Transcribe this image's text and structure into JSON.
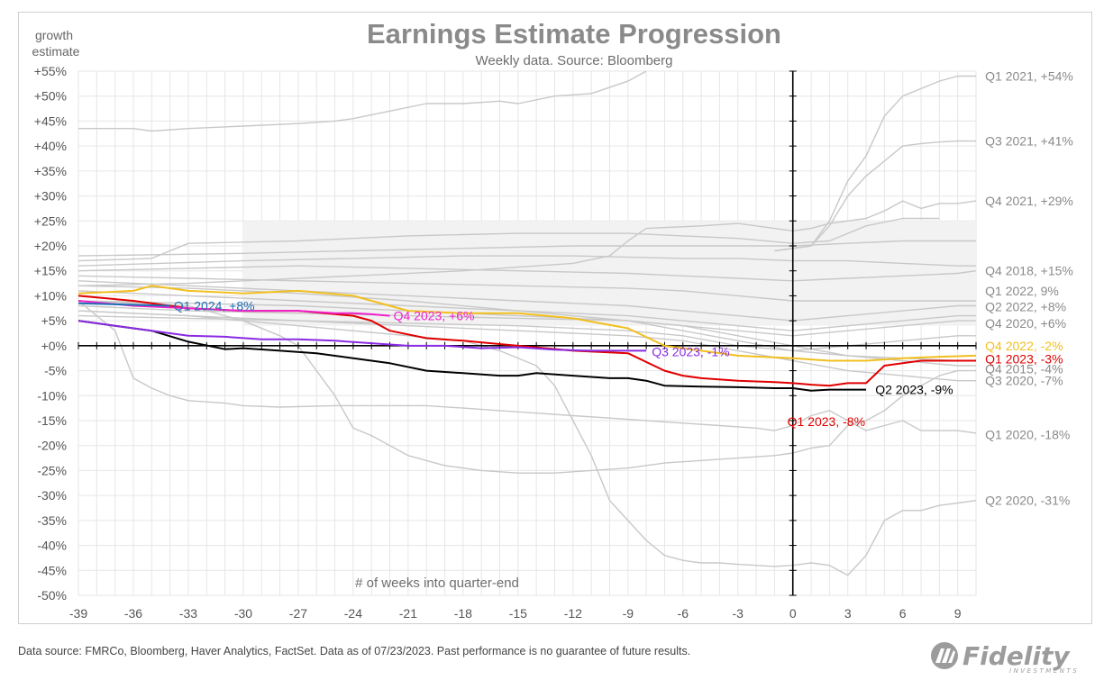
{
  "chart_data": {
    "type": "line",
    "title": "Earnings Estimate Progression",
    "subtitle": "Weekly data.  Source: Bloomberg",
    "ylabel_line1": "growth",
    "ylabel_line2": "estimate",
    "xlabel": "# of weeks into quarter-end",
    "xlim": [
      -39,
      10
    ],
    "ylim": [
      -50,
      55
    ],
    "x_ticks": [
      -39,
      -36,
      -33,
      -30,
      -27,
      -24,
      -21,
      -18,
      -15,
      -12,
      -9,
      -6,
      -3,
      0,
      3,
      6,
      9
    ],
    "y_ticks": [
      {
        "value": 55,
        "label": "+55%"
      },
      {
        "value": 50,
        "label": "+50%"
      },
      {
        "value": 45,
        "label": "+45%"
      },
      {
        "value": 40,
        "label": "+40%"
      },
      {
        "value": 35,
        "label": "+35%"
      },
      {
        "value": 30,
        "label": "+30%"
      },
      {
        "value": 25,
        "label": "+25%"
      },
      {
        "value": 20,
        "label": "+20%"
      },
      {
        "value": 15,
        "label": "+15%"
      },
      {
        "value": 10,
        "label": "+10%"
      },
      {
        "value": 5,
        "label": "+5%"
      },
      {
        "value": 0,
        "label": "+0%"
      },
      {
        "value": -5,
        "label": "-5%"
      },
      {
        "value": -10,
        "label": "-10%"
      },
      {
        "value": -15,
        "label": "-15%"
      },
      {
        "value": -20,
        "label": "-20%"
      },
      {
        "value": -25,
        "label": "-25%"
      },
      {
        "value": -30,
        "label": "-30%"
      },
      {
        "value": -35,
        "label": "-35%"
      },
      {
        "value": -40,
        "label": "-40%"
      },
      {
        "value": -45,
        "label": "-45%"
      },
      {
        "value": -50,
        "label": "-50%"
      }
    ],
    "grid": true,
    "colors": {
      "grid": "#e6e6e6",
      "history": "#c8c8c8",
      "band": "#f2f2f2",
      "q1_2024": "#1f6fb5",
      "q4_2023": "#ee22cc",
      "q3_2023": "#8a2be2",
      "q2_2023": "#000000",
      "q1_2023": "#e00000",
      "q4_2022": "#f2bf1f"
    },
    "highlighted_series": [
      {
        "key": "q4_2022",
        "color": "#f2bf1f",
        "x": [
          -39,
          -36,
          -35,
          -33,
          -30,
          -27,
          -24,
          -21,
          -18,
          -15,
          -12,
          -9,
          -7,
          -5,
          -3,
          0,
          2,
          4,
          6,
          8,
          10
        ],
        "y": [
          10.5,
          11,
          12,
          11,
          10.5,
          11,
          10,
          7,
          6.5,
          6.5,
          5.5,
          3.5,
          0,
          -1,
          -2,
          -2.5,
          -3,
          -3,
          -2.5,
          -2.2,
          -2
        ]
      },
      {
        "key": "q1_2023",
        "color": "#e00000",
        "x": [
          -39,
          -36,
          -33,
          -30,
          -27,
          -24,
          -23,
          -22,
          -20,
          -18,
          -15,
          -12,
          -9,
          -7,
          -6,
          -5,
          -3,
          -1,
          0,
          1,
          2,
          3,
          4,
          5,
          7,
          9,
          10
        ],
        "y": [
          10,
          9,
          7.5,
          7,
          7,
          6,
          5,
          3,
          1.5,
          1,
          0,
          -1,
          -1.5,
          -5,
          -6,
          -6.5,
          -7,
          -7.3,
          -7.5,
          -7.8,
          -8,
          -7.5,
          -7.5,
          -4,
          -3,
          -3,
          -3
        ]
      },
      {
        "key": "q2_2023",
        "color": "#000000",
        "x": [
          -39,
          -37,
          -35,
          -33,
          -31,
          -30,
          -28,
          -26,
          -24,
          -22,
          -20,
          -18,
          -16,
          -15,
          -14,
          -12,
          -10,
          -9,
          -8,
          -7,
          -5,
          -3,
          -1,
          0,
          1,
          2,
          4
        ],
        "y": [
          5,
          4,
          3,
          0.8,
          -0.7,
          -0.5,
          -1,
          -1.5,
          -2.5,
          -3.5,
          -5,
          -5.5,
          -6,
          -6,
          -5.5,
          -6,
          -6.5,
          -6.5,
          -7,
          -8,
          -8.2,
          -8.3,
          -8.5,
          -8.5,
          -9,
          -8.8,
          -8.8
        ]
      },
      {
        "key": "q3_2023",
        "color": "#8a2be2",
        "x": [
          -39,
          -37,
          -35,
          -33,
          -31,
          -29,
          -27,
          -25,
          -23,
          -21,
          -19,
          -17,
          -15,
          -13,
          -11,
          -9,
          -8
        ],
        "y": [
          5,
          4,
          3,
          2,
          1.8,
          1.3,
          1.3,
          1,
          0.5,
          0,
          0,
          -0.5,
          -0.3,
          -0.8,
          -1,
          -1,
          -1
        ]
      },
      {
        "key": "q4_2023",
        "color": "#ee22cc",
        "x": [
          -39,
          -36,
          -33,
          -30,
          -27,
          -25,
          -24,
          -23,
          -22
        ],
        "y": [
          9,
          8,
          7.5,
          7,
          7,
          6.5,
          6.5,
          6.3,
          6
        ]
      },
      {
        "key": "q1_2024",
        "color": "#1f6fb5",
        "x": [
          -39,
          -37,
          -35,
          -34
        ],
        "y": [
          8.5,
          8.3,
          8.1,
          8
        ]
      }
    ],
    "history_series": [
      {
        "x": [
          -39,
          -36,
          -35,
          -33,
          -30,
          -27,
          -25,
          -24,
          -22,
          -20,
          -18,
          -16,
          -15,
          -13,
          -11,
          -9,
          -8
        ],
        "y": [
          43.5,
          43.5,
          43,
          43.5,
          44,
          44.5,
          45,
          45.5,
          47,
          48.5,
          48.5,
          49,
          48.5,
          50,
          50.5,
          53,
          56
        ]
      },
      {
        "x": [
          -1,
          0,
          1,
          2,
          3,
          4,
          5,
          6,
          7,
          8,
          9,
          10
        ],
        "y": [
          19,
          19.5,
          20,
          25,
          33,
          38,
          46,
          50,
          51.5,
          53,
          54,
          54
        ]
      },
      {
        "x": [
          -1,
          0,
          1,
          2,
          3,
          4,
          5,
          6,
          7,
          8,
          9,
          10
        ],
        "y": [
          19,
          19.5,
          20,
          24,
          30,
          34,
          37,
          40,
          40.5,
          40.8,
          41,
          41
        ]
      },
      {
        "x": [
          -39,
          -33,
          -24,
          -18,
          -12,
          -10,
          -9,
          -8,
          -5,
          -3,
          -1,
          0,
          1,
          2,
          3,
          4,
          5,
          6,
          7,
          8,
          9,
          10
        ],
        "y": [
          12,
          12.5,
          14,
          15,
          16.5,
          18,
          21,
          23.5,
          24,
          24.5,
          23.5,
          23,
          23.5,
          24.5,
          25,
          25.5,
          27,
          29,
          27.5,
          28.5,
          28.5,
          29
        ]
      },
      {
        "x": [
          -39,
          -35,
          -33,
          -27,
          -21,
          -15,
          -9,
          -6,
          -3,
          0,
          2,
          4,
          6,
          8
        ],
        "y": [
          17,
          17.5,
          20.5,
          21,
          22,
          22.5,
          22.5,
          22,
          21.5,
          20.5,
          21,
          24,
          25.5,
          25.5
        ]
      },
      {
        "x": [
          -39,
          -33,
          -27,
          -21,
          -15,
          -9,
          -6,
          -3,
          0,
          3,
          6,
          9,
          10
        ],
        "y": [
          15,
          15.5,
          16,
          15.5,
          15,
          14.5,
          14,
          13.5,
          13,
          13.5,
          14,
          14.5,
          15
        ]
      },
      {
        "x": [
          -39,
          -33,
          -27,
          -21,
          -15,
          -9,
          -6,
          -3,
          0,
          3,
          6,
          9,
          10
        ],
        "y": [
          14,
          13.5,
          13,
          12.5,
          12,
          11.5,
          11,
          10,
          9,
          9,
          9,
          9,
          9
        ]
      },
      {
        "x": [
          -39,
          -33,
          -27,
          -21,
          -15,
          -9,
          -6,
          -3,
          0,
          3,
          6,
          9,
          10
        ],
        "y": [
          13,
          12,
          11,
          10,
          9,
          8,
          7,
          6,
          5,
          6,
          7,
          8,
          8
        ]
      },
      {
        "x": [
          -39,
          -33,
          -27,
          -21,
          -15,
          -9,
          -6,
          -3,
          0,
          3,
          6,
          9,
          10
        ],
        "y": [
          11,
          10,
          9,
          8,
          7,
          6,
          5,
          4,
          3,
          4,
          5,
          6,
          6
        ]
      },
      {
        "x": [
          -39,
          -33,
          -27,
          -21,
          -15,
          -9,
          -6,
          -3,
          0,
          3,
          6,
          9,
          10
        ],
        "y": [
          12,
          11.5,
          10.5,
          9,
          7,
          5,
          3,
          1,
          -1,
          -2,
          -2.5,
          -3,
          -3
        ]
      },
      {
        "x": [
          -39,
          -33,
          -27,
          -21,
          -15,
          -9,
          -6,
          -3,
          0,
          3,
          6,
          9,
          10
        ],
        "y": [
          9,
          8.5,
          8,
          7,
          6,
          5,
          4,
          3,
          2,
          3,
          4,
          5,
          5
        ]
      },
      {
        "x": [
          -39,
          -33,
          -27,
          -21,
          -15,
          -9,
          -6,
          -3,
          0,
          3,
          6,
          9,
          10
        ],
        "y": [
          8,
          7,
          6.5,
          6,
          5.5,
          5,
          4,
          2,
          0,
          -2,
          -3,
          -4,
          -4
        ]
      },
      {
        "x": [
          -39,
          -33,
          -27,
          -21,
          -15,
          -9,
          -6,
          -3,
          0,
          3,
          6,
          9,
          10
        ],
        "y": [
          7,
          6,
          5,
          4,
          3,
          2,
          1,
          -1,
          -3,
          -5,
          -6,
          -7,
          -7
        ]
      },
      {
        "x": [
          -39,
          -33,
          -27,
          -21,
          -15,
          -9,
          -6,
          -3,
          0,
          3,
          6,
          9,
          10
        ],
        "y": [
          6,
          5.5,
          5,
          4.5,
          4,
          3,
          2,
          0,
          -1,
          0,
          1,
          2,
          2
        ]
      },
      {
        "x": [
          -39,
          -37,
          -36,
          -35,
          -34,
          -33,
          -31,
          -30,
          -28,
          -25,
          -22,
          -20,
          -18,
          -16,
          -14,
          -12,
          -10,
          -8,
          -6,
          -4,
          -2,
          -1,
          0,
          1,
          2,
          3,
          4,
          5,
          6,
          7,
          8,
          9,
          10
        ],
        "y": [
          9,
          3,
          -6.5,
          -8.5,
          -10,
          -11,
          -11.5,
          -12,
          -12.3,
          -12,
          -12,
          -12,
          -12.5,
          -13,
          -13.5,
          -14,
          -14.5,
          -15,
          -15.5,
          -16,
          -16.5,
          -17,
          -16,
          -14,
          -13,
          -15,
          -17,
          -16,
          -15,
          -17,
          -17,
          -17,
          -17.5
        ]
      },
      {
        "x": [
          -39,
          -33,
          -30,
          -28,
          -27,
          -26,
          -25,
          -24,
          -23,
          -22,
          -21,
          -19,
          -17,
          -15,
          -13,
          -11,
          -9,
          -7,
          -5,
          -3,
          -1,
          0,
          1,
          2,
          3,
          4,
          5,
          6,
          7,
          8,
          9,
          10
        ],
        "y": [
          9,
          8,
          5,
          2,
          0,
          -5,
          -10,
          -16.5,
          -18,
          -20,
          -22,
          -24,
          -25,
          -25.5,
          -25.5,
          -25,
          -24.5,
          -23.5,
          -23,
          -22.5,
          -22,
          -21.5,
          -20.5,
          -20,
          -16,
          -15,
          -13,
          -10,
          -8,
          -6,
          -5,
          -5
        ]
      },
      {
        "x": [
          -39,
          -33,
          -27,
          -21,
          -18,
          -16,
          -14,
          -13,
          -12,
          -11,
          -10,
          -9,
          -8,
          -7,
          -6,
          -5,
          -4,
          -3,
          -2,
          -1,
          0,
          1,
          2,
          3,
          4,
          5,
          6,
          7,
          8,
          9,
          10
        ],
        "y": [
          7,
          6,
          4,
          2,
          1,
          -1,
          -4,
          -8,
          -15,
          -22,
          -31,
          -35,
          -39,
          -42,
          -43,
          -43.5,
          -43.5,
          -43.8,
          -44,
          -44.2,
          -44,
          -43.5,
          -44,
          -46,
          -42,
          -35,
          -33,
          -33,
          -32,
          -31.5,
          -31
        ]
      },
      {
        "x": [
          -39,
          -30,
          -24,
          -18,
          -12,
          -6,
          -3,
          0,
          3,
          6,
          9,
          10
        ],
        "y": [
          16,
          17,
          17.5,
          18,
          18,
          17.5,
          17.5,
          17,
          17,
          16.5,
          16,
          16
        ]
      },
      {
        "x": [
          -39,
          -30,
          -24,
          -18,
          -12,
          -6,
          -3,
          0,
          3,
          6,
          9,
          10
        ],
        "y": [
          18,
          18.5,
          19,
          19.5,
          20,
          20,
          20,
          20,
          20.5,
          21,
          21,
          21
        ]
      }
    ],
    "band": {
      "x_from": -30,
      "x_to": 10,
      "y_from": 4,
      "y_to": 25
    },
    "series_labels": [
      {
        "text": "Q1 2021, +54%",
        "color": "#8a8a8a",
        "x": 10.5,
        "y": 54
      },
      {
        "text": "Q3 2021, +41%",
        "color": "#8a8a8a",
        "x": 10.5,
        "y": 41
      },
      {
        "text": "Q4 2021, +29%",
        "color": "#8a8a8a",
        "x": 10.5,
        "y": 29
      },
      {
        "text": "Q4 2018, +15%",
        "color": "#8a8a8a",
        "x": 10.5,
        "y": 15
      },
      {
        "text": "Q1 2022, 9%",
        "color": "#8a8a8a",
        "x": 10.5,
        "y": 11
      },
      {
        "text": "Q2 2022, +8%",
        "color": "#8a8a8a",
        "x": 10.5,
        "y": 7.8
      },
      {
        "text": "Q4 2020, +6%",
        "color": "#8a8a8a",
        "x": 10.5,
        "y": 4.5
      },
      {
        "text": "Q4 2022, -2%",
        "color": "#f2bf1f",
        "x": 10.5,
        "y": 0
      },
      {
        "text": "Q1 2023, -3%",
        "color": "#e00000",
        "x": 10.5,
        "y": -2.6
      },
      {
        "text": "Q4 2015, -4%",
        "color": "#8a8a8a",
        "x": 10.5,
        "y": -4.6
      },
      {
        "text": "Q3 2020, -7%",
        "color": "#8a8a8a",
        "x": 10.5,
        "y": -7
      },
      {
        "text": "Q2 2023, -9%",
        "color": "#000000",
        "x": 4.5,
        "y": -8.8
      },
      {
        "text": "Q1 2023, -8%",
        "color": "#e00000",
        "x": -0.3,
        "y": -15.2
      },
      {
        "text": "Q1 2020, -18%",
        "color": "#8a8a8a",
        "x": 10.5,
        "y": -17.8
      },
      {
        "text": "Q2 2020, -31%",
        "color": "#8a8a8a",
        "x": 10.5,
        "y": -31
      },
      {
        "text": "Q1 2024, +8%",
        "color": "#1f6fb5",
        "x": -33.8,
        "y": 8
      },
      {
        "text": "Q4 2023, +6%",
        "color": "#ee22cc",
        "x": -21.8,
        "y": 6
      },
      {
        "text": "Q3 2023, -1%",
        "color": "#8a2be2",
        "x": -7.7,
        "y": -1.2
      }
    ]
  },
  "footer": {
    "disclaimer": "Data source: FMRCo, Bloomberg, Haver Analytics, FactSet. Data as of 07/23/2023. Past performance is no guarantee of future results."
  },
  "logo": {
    "name": "Fidelity",
    "sub": "INVESTMENTS",
    "icon": "fidelity-shield-icon"
  }
}
